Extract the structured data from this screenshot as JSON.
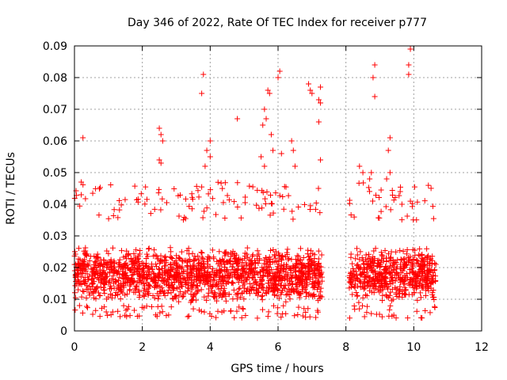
{
  "chart_data": {
    "type": "scatter",
    "title": "Day 346 of 2022, Rate Of TEC Index for receiver p777",
    "xlabel": "GPS time / hours",
    "ylabel": "ROTI / TECUs",
    "xlim": [
      0,
      12
    ],
    "ylim": [
      0,
      0.09
    ],
    "x_ticks": [
      "0",
      "2",
      "4",
      "6",
      "8",
      "10",
      "12"
    ],
    "y_ticks": [
      "0",
      "0.01",
      "0.02",
      "0.03",
      "0.04",
      "0.05",
      "0.06",
      "0.07",
      "0.08",
      "0.09"
    ],
    "grid": true,
    "marker": "+",
    "color": "#ff0000",
    "series": [
      {
        "name": "ROTI",
        "segments": [
          {
            "x_start": 0.0,
            "x_end": 7.3,
            "typical_range": [
              0.005,
              0.035
            ]
          },
          {
            "x_start": 8.1,
            "x_end": 10.65,
            "typical_range": [
              0.005,
              0.035
            ]
          }
        ],
        "outliers": [
          [
            0.25,
            0.061
          ],
          [
            0.2,
            0.047
          ],
          [
            0.2,
            0.043
          ],
          [
            2.5,
            0.064
          ],
          [
            2.55,
            0.062
          ],
          [
            2.6,
            0.06
          ],
          [
            2.5,
            0.054
          ],
          [
            2.55,
            0.053
          ],
          [
            3.8,
            0.081
          ],
          [
            3.75,
            0.075
          ],
          [
            4.0,
            0.06
          ],
          [
            3.9,
            0.057
          ],
          [
            4.0,
            0.055
          ],
          [
            3.85,
            0.052
          ],
          [
            4.8,
            0.067
          ],
          [
            5.6,
            0.07
          ],
          [
            5.65,
            0.067
          ],
          [
            5.55,
            0.065
          ],
          [
            5.75,
            0.075
          ],
          [
            5.7,
            0.076
          ],
          [
            5.8,
            0.062
          ],
          [
            5.5,
            0.055
          ],
          [
            5.6,
            0.052
          ],
          [
            5.85,
            0.057
          ],
          [
            6.05,
            0.082
          ],
          [
            6.0,
            0.08
          ],
          [
            6.1,
            0.056
          ],
          [
            6.4,
            0.06
          ],
          [
            6.45,
            0.057
          ],
          [
            6.5,
            0.052
          ],
          [
            6.9,
            0.078
          ],
          [
            6.95,
            0.076
          ],
          [
            7.0,
            0.075
          ],
          [
            7.25,
            0.077
          ],
          [
            7.2,
            0.073
          ],
          [
            7.25,
            0.072
          ],
          [
            7.2,
            0.066
          ],
          [
            7.25,
            0.054
          ],
          [
            8.4,
            0.052
          ],
          [
            8.5,
            0.05
          ],
          [
            8.7,
            0.048
          ],
          [
            8.85,
            0.084
          ],
          [
            8.8,
            0.08
          ],
          [
            8.85,
            0.074
          ],
          [
            8.75,
            0.05
          ],
          [
            9.3,
            0.061
          ],
          [
            9.25,
            0.057
          ],
          [
            9.3,
            0.05
          ],
          [
            9.2,
            0.048
          ],
          [
            9.6,
            0.044
          ],
          [
            9.65,
            0.04
          ],
          [
            9.9,
            0.089
          ],
          [
            9.85,
            0.084
          ],
          [
            9.85,
            0.081
          ]
        ]
      }
    ]
  }
}
